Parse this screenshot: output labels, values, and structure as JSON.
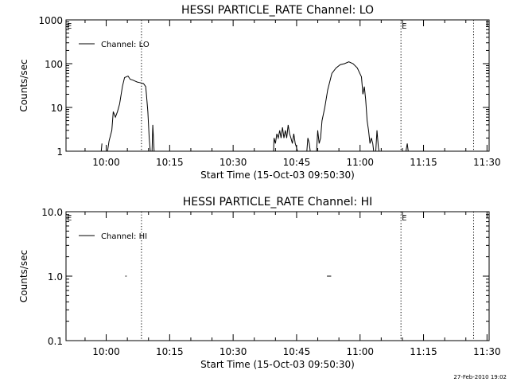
{
  "chart_data": [
    {
      "type": "line",
      "title": "HESSI PARTICLE_RATE Channel: LO",
      "xlabel": "Start Time (15-Oct-03 09:50:30)",
      "ylabel": "Counts/sec",
      "y_scale": "log",
      "ylim": [
        1,
        1000
      ],
      "xlim": [
        "09:50:30",
        "11:30:30"
      ],
      "x_ticks": [
        "10:00",
        "10:15",
        "10:30",
        "10:45",
        "11:00",
        "11:15",
        "11:30"
      ],
      "y_ticks": [
        "1",
        "10",
        "100",
        "1000"
      ],
      "legend": {
        "label": "Channel: LO",
        "position": "top-left"
      },
      "markers": [
        {
          "time": "10:08:20",
          "label": ""
        },
        {
          "time": "11:09:40",
          "label": "E"
        },
        {
          "time": "11:26:50",
          "label": ""
        }
      ],
      "corner_label": "E",
      "grid": false,
      "series": [
        {
          "name": "Channel: LO",
          "segments": [
            [
              [
                "09:58:50",
                1
              ],
              [
                "09:59:00",
                1.5
              ]
            ],
            [
              [
                "10:00:10",
                0.8
              ],
              [
                "10:00:40",
                1.7
              ],
              [
                "10:01:20",
                3
              ],
              [
                "10:01:40",
                8
              ],
              [
                "10:02:10",
                6
              ],
              [
                "10:02:40",
                8
              ],
              [
                "10:03:10",
                12
              ],
              [
                "10:03:50",
                30
              ],
              [
                "10:04:20",
                48
              ],
              [
                "10:05:10",
                52
              ],
              [
                "10:05:40",
                44
              ],
              [
                "10:06:20",
                42
              ],
              [
                "10:06:50",
                40
              ],
              [
                "10:07:20",
                38
              ],
              [
                "10:07:50",
                37
              ],
              [
                "10:08:20",
                36
              ],
              [
                "10:08:50",
                35
              ],
              [
                "10:09:20",
                30
              ],
              [
                "10:09:30",
                20
              ],
              [
                "10:09:50",
                8
              ],
              [
                "10:10:10",
                2
              ],
              [
                "10:10:30",
                0.8
              ]
            ],
            [
              [
                "10:10:50",
                1
              ],
              [
                "10:11:00",
                4
              ],
              [
                "10:11:20",
                1
              ],
              [
                "10:11:40",
                0.8
              ]
            ],
            [
              [
                "10:39:30",
                0.8
              ],
              [
                "10:39:40",
                2
              ],
              [
                "10:40:00",
                1.5
              ],
              [
                "10:40:20",
                2.5
              ],
              [
                "10:40:40",
                2
              ],
              [
                "10:41:00",
                3
              ],
              [
                "10:41:20",
                2
              ],
              [
                "10:41:40",
                3.5
              ],
              [
                "10:42:00",
                2
              ],
              [
                "10:42:20",
                3
              ],
              [
                "10:42:40",
                2
              ],
              [
                "10:43:00",
                4
              ],
              [
                "10:43:20",
                2.5
              ],
              [
                "10:43:40",
                2
              ],
              [
                "10:44:00",
                1.5
              ],
              [
                "10:44:20",
                2.5
              ],
              [
                "10:44:40",
                1.5
              ],
              [
                "10:45:00",
                1.2
              ],
              [
                "10:45:30",
                0.8
              ]
            ],
            [
              [
                "10:47:20",
                0.8
              ],
              [
                "10:47:40",
                2
              ],
              [
                "10:48:00",
                1.5
              ],
              [
                "10:48:20",
                0.8
              ]
            ],
            [
              [
                "10:49:40",
                0.8
              ],
              [
                "10:50:00",
                3
              ],
              [
                "10:50:20",
                1.5
              ],
              [
                "10:50:40",
                2
              ],
              [
                "10:51:00",
                5
              ],
              [
                "10:51:40",
                10
              ],
              [
                "10:52:20",
                25
              ],
              [
                "10:53:20",
                60
              ],
              [
                "10:54:20",
                80
              ],
              [
                "10:55:20",
                95
              ],
              [
                "10:56:20",
                100
              ],
              [
                "10:57:20",
                110
              ],
              [
                "10:58:20",
                100
              ],
              [
                "10:59:20",
                80
              ],
              [
                "11:00:20",
                50
              ],
              [
                "11:00:40",
                20
              ],
              [
                "11:01:00",
                30
              ],
              [
                "11:01:20",
                15
              ],
              [
                "11:01:40",
                5
              ],
              [
                "11:02:00",
                3
              ],
              [
                "11:02:20",
                1.5
              ],
              [
                "11:02:40",
                2
              ],
              [
                "11:03:00",
                1.5
              ],
              [
                "11:03:20",
                0.8
              ]
            ],
            [
              [
                "11:03:40",
                0.8
              ],
              [
                "11:04:00",
                3
              ],
              [
                "11:04:20",
                1.2
              ],
              [
                "11:04:40",
                0.8
              ]
            ],
            [
              [
                "11:10:40",
                0.8
              ],
              [
                "11:11:10",
                1.5
              ],
              [
                "11:11:30",
                0.8
              ]
            ]
          ]
        }
      ]
    },
    {
      "type": "line",
      "title": "HESSI PARTICLE_RATE Channel: HI",
      "xlabel": "Start Time (15-Oct-03 09:50:30)",
      "ylabel": "Counts/sec",
      "y_scale": "log",
      "ylim": [
        0.1,
        10
      ],
      "xlim": [
        "09:50:30",
        "11:30:30"
      ],
      "x_ticks": [
        "10:00",
        "10:15",
        "10:30",
        "10:45",
        "11:00",
        "11:15",
        "11:30"
      ],
      "y_ticks": [
        "0.1",
        "1.0",
        "10.0"
      ],
      "legend": {
        "label": "Channel: HI",
        "position": "top-left"
      },
      "markers": [
        {
          "time": "10:08:20",
          "label": ""
        },
        {
          "time": "11:09:40",
          "label": "E"
        },
        {
          "time": "11:26:50",
          "label": ""
        }
      ],
      "corner_label": "E",
      "grid": false,
      "series": [
        {
          "name": "Channel: HI",
          "segments": [
            [
              [
                "10:04:30",
                1
              ],
              [
                "10:04:50",
                1
              ]
            ],
            [
              [
                "10:52:10",
                1
              ],
              [
                "10:53:10",
                1
              ]
            ]
          ]
        }
      ]
    }
  ],
  "footer": {
    "timestamp": "27-Feb-2010 19:02"
  }
}
